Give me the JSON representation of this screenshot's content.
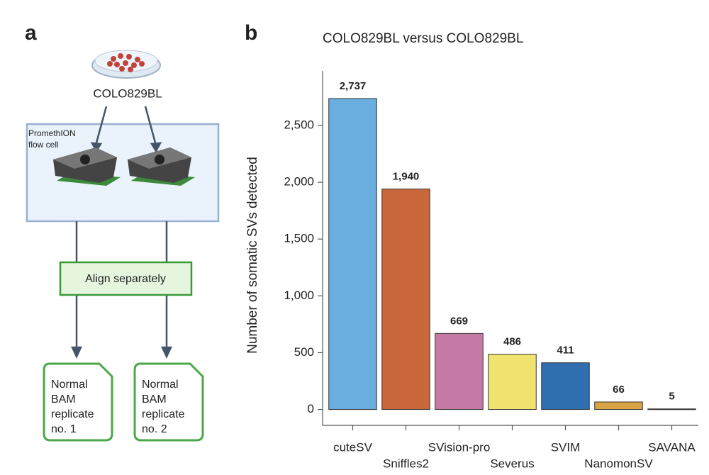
{
  "panel_labels": [
    "a",
    "b"
  ],
  "diagram": {
    "sample": "COLO829BL",
    "flow_cell": [
      "PromethION",
      "flow cell"
    ],
    "step": "Align separately",
    "outputs": [
      [
        "Normal",
        "BAM",
        "replicate",
        "no. 1"
      ],
      [
        "Normal",
        "BAM",
        "replicate",
        "no. 2"
      ]
    ]
  },
  "chart_data": {
    "type": "bar",
    "title": "COLO829BL versus COLO829BL",
    "y_label": "Number of somatic SVs detected",
    "categories": [
      "cuteSV",
      "Sniffles2",
      "SVision-pro",
      "Severus",
      "SVIM",
      "NanomonSV",
      "SAVANA"
    ],
    "values": [
      2737,
      1940,
      669,
      486,
      411,
      66,
      5
    ],
    "value_labels": [
      "2,737",
      "1,940",
      "669",
      "486",
      "411",
      "66",
      "5"
    ],
    "colors": [
      "#6aaee0",
      "#c9663a",
      "#c47aa5",
      "#f0e46e",
      "#2f6fb0",
      "#d9a444",
      "#222222"
    ],
    "ylim": [
      -140,
      2980
    ],
    "yticks": [
      0,
      500,
      {
        "value": 1000,
        "label": "1,000"
      },
      {
        "value": 1500,
        "label": "1,500"
      },
      {
        "value": 2000,
        "label": "2,000"
      },
      {
        "value": 2500,
        "label": "2,500"
      }
    ],
    "grid": false
  }
}
